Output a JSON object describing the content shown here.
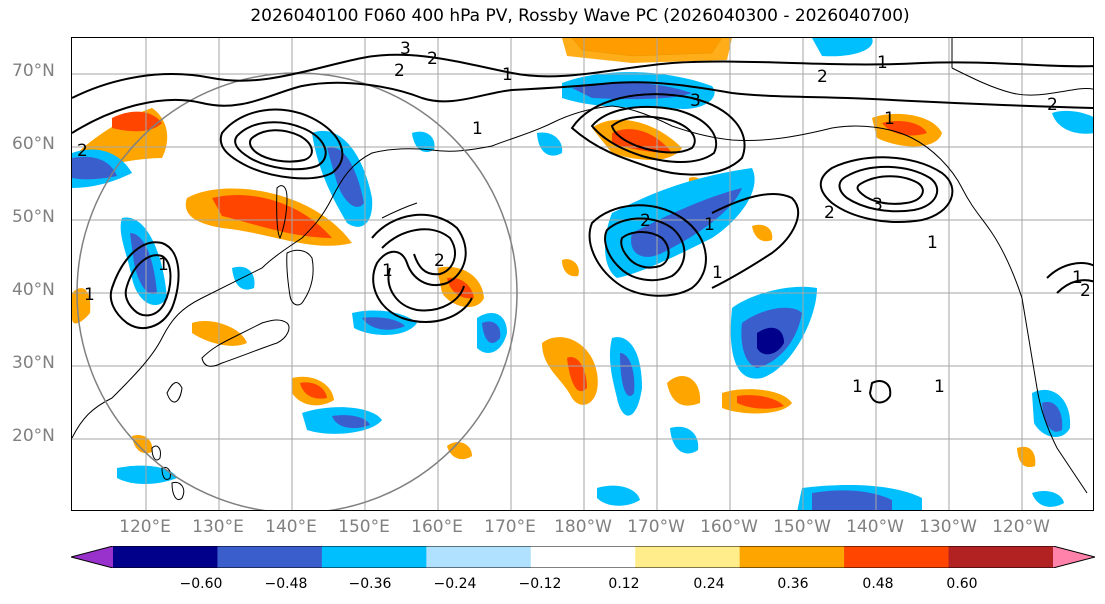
{
  "title": "2026040100 F060 400 hPa PV, Rossby Wave PC (2026040300 - 2026040700)",
  "lat_labels": [
    "70°N",
    "60°N",
    "50°N",
    "40°N",
    "30°N",
    "20°N"
  ],
  "lon_labels": [
    "120°E",
    "130°E",
    "140°E",
    "150°E",
    "160°E",
    "170°E",
    "180°W",
    "170°W",
    "160°W",
    "150°W",
    "140°W",
    "130°W",
    "120°W"
  ],
  "colorbar": {
    "colors": [
      "#9932cc",
      "#00008b",
      "#3a5fcd",
      "#00bfff",
      "#b0e2ff",
      "#ffffff",
      "#ffec8b",
      "#ffa500",
      "#ff4500",
      "#b22222",
      "#ff82ab"
    ],
    "tick_labels": [
      "−0.60",
      "−0.48",
      "−0.36",
      "−0.24",
      "−0.12",
      "0.12",
      "0.24",
      "0.36",
      "0.48",
      "0.60"
    ]
  },
  "contour_labels": [
    "3",
    "2",
    "2",
    "1",
    "2",
    "1",
    "2",
    "3",
    "1",
    "2",
    "1",
    "1",
    "2",
    "2",
    "1",
    "1",
    "2",
    "3",
    "1",
    "1",
    "1",
    "1",
    "1",
    "2",
    "1"
  ],
  "map_features": [
    "coastlines",
    "graticule",
    "pv-anomaly-shading",
    "pv-contours",
    "reference-circle"
  ]
}
